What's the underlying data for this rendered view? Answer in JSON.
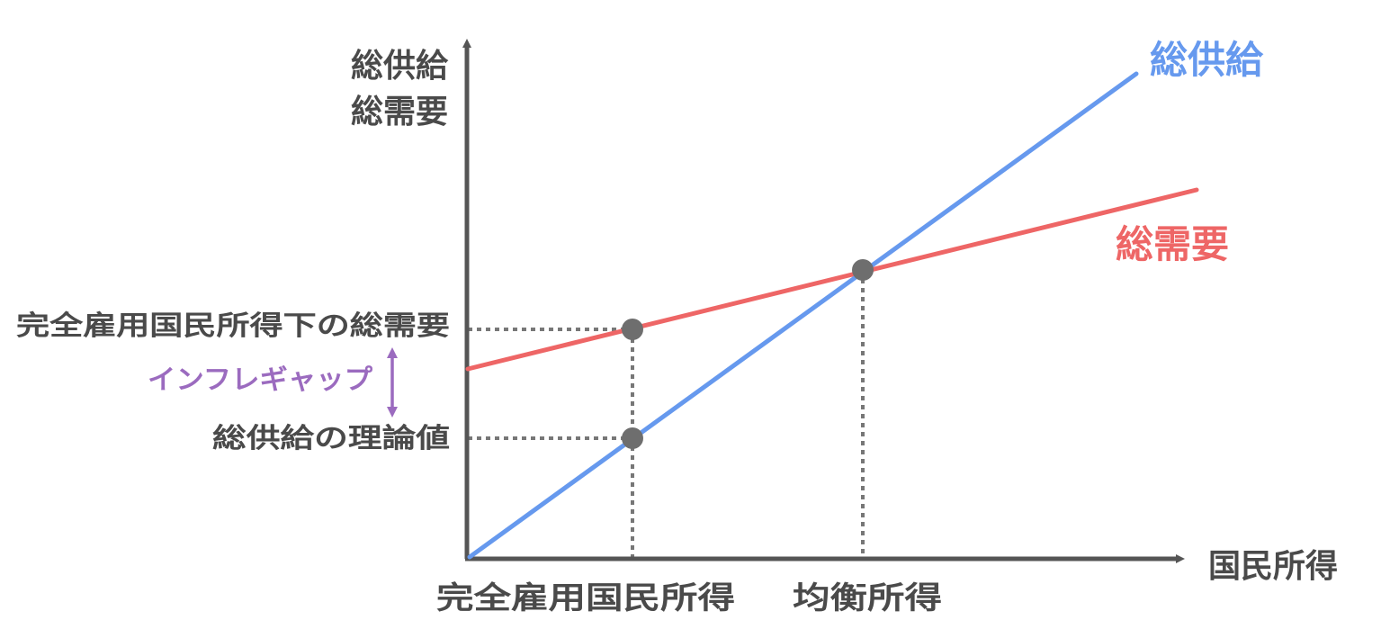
{
  "axes": {
    "y_label_line1": "総供給",
    "y_label_line2": "総需要",
    "x_label": "国民所得"
  },
  "curves": {
    "supply": {
      "label": "総供給",
      "color": "#6699ee"
    },
    "demand": {
      "label": "総需要",
      "color": "#ee6666"
    }
  },
  "y_markers": {
    "full_employment_demand": "完全雇用国民所得下の総需要",
    "inflation_gap": "インフレギャップ",
    "supply_theoretical": "総供給の理論値"
  },
  "x_markers": {
    "full_employment_income": "完全雇用国民所得",
    "equilibrium_income": "均衡所得"
  },
  "colors": {
    "axis": "#555555",
    "point": "#6e6e6e",
    "guide": "#777777",
    "gap_arrow": "#9b6bbf",
    "text": "#4a4a4a"
  }
}
